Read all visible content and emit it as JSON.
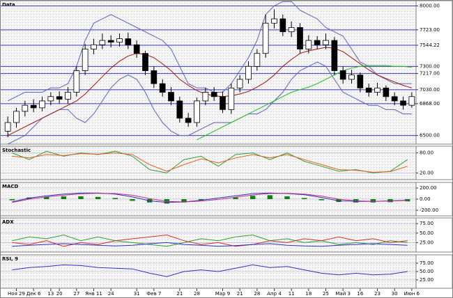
{
  "chart_data": [
    {
      "type": "candlestick",
      "title": "Data",
      "categories": [
        null,
        "Ноя 29",
        null,
        "Дек 6",
        null,
        "13",
        "20",
        null,
        "27",
        null,
        "Янв 11",
        null,
        "24",
        null,
        null,
        "31",
        null,
        "Фев 7",
        null,
        null,
        "21",
        null,
        "28",
        null,
        null,
        "Мар 9",
        null,
        "21",
        null,
        "28",
        null,
        "Апр 4",
        null,
        "11",
        null,
        "18",
        null,
        "25",
        null,
        "Май 3",
        null,
        "16",
        null,
        "23",
        null,
        "30",
        null,
        "Июн 6"
      ],
      "open": [
        6550,
        6650,
        6780,
        6850,
        6820,
        6900,
        6950,
        6920,
        7000,
        7250,
        7500,
        7550,
        7600,
        7580,
        7620,
        7550,
        7450,
        7250,
        7100,
        7000,
        6900,
        6700,
        6650,
        6900,
        7000,
        6950,
        6800,
        7050,
        7150,
        7300,
        7450,
        7800,
        7850,
        7700,
        7750,
        7500,
        7600,
        7550,
        7600,
        7250,
        7150,
        7200,
        7050,
        7000,
        7050,
        6950,
        6900,
        6850
      ],
      "high": [
        6720,
        6820,
        6900,
        6920,
        6950,
        7000,
        7010,
        7060,
        7300,
        7560,
        7620,
        7680,
        7660,
        7680,
        7690,
        7600,
        7480,
        7300,
        7150,
        7060,
        6950,
        6760,
        6940,
        7050,
        7060,
        7010,
        7100,
        7200,
        7360,
        7500,
        7900,
        7960,
        7900,
        7820,
        7800,
        7660,
        7650,
        7680,
        7640,
        7300,
        7260,
        7230,
        7100,
        7110,
        7080,
        7000,
        6950,
        7000
      ],
      "low": [
        6480,
        6590,
        6720,
        6770,
        6780,
        6850,
        6870,
        6870,
        6950,
        7200,
        7440,
        7500,
        7520,
        7530,
        7500,
        7400,
        7200,
        7050,
        6950,
        6850,
        6650,
        6600,
        6600,
        6850,
        6900,
        6760,
        6750,
        7000,
        7100,
        7250,
        7400,
        7740,
        7650,
        7640,
        7450,
        7450,
        7500,
        7500,
        7200,
        7100,
        7100,
        7000,
        6950,
        6960,
        6900,
        6850,
        6800,
        6820
      ],
      "close": [
        6650,
        6780,
        6850,
        6820,
        6900,
        6950,
        6920,
        7000,
        7250,
        7500,
        7550,
        7600,
        7580,
        7620,
        7550,
        7450,
        7250,
        7100,
        7000,
        6900,
        6700,
        6650,
        6900,
        7000,
        6950,
        6800,
        7050,
        7150,
        7300,
        7450,
        7800,
        7850,
        7700,
        7750,
        7500,
        7600,
        7550,
        7600,
        7250,
        7150,
        7200,
        7050,
        7000,
        7050,
        6950,
        6900,
        6850,
        6950
      ],
      "series": [
        {
          "name": "BB upper",
          "color": "#6060c0",
          "values": [
            6900,
            6950,
            7000,
            7000,
            7000,
            7050,
            7050,
            7100,
            7300,
            7600,
            7800,
            7850,
            7900,
            7850,
            7800,
            7750,
            7700,
            7650,
            7600,
            7500,
            7300,
            7100,
            7050,
            7050,
            7000,
            7000,
            7100,
            7250,
            7400,
            7600,
            7900,
            8000,
            8050,
            8050,
            7950,
            7900,
            7850,
            7750,
            7700,
            7650,
            7500,
            7350,
            7300,
            7200,
            7150,
            7100,
            7100,
            7100
          ]
        },
        {
          "name": "BB lower",
          "color": "#6060c0",
          "values": [
            6400,
            6450,
            6500,
            6600,
            6700,
            6750,
            6800,
            6800,
            6700,
            6650,
            6750,
            6900,
            7050,
            7150,
            7200,
            7150,
            7000,
            6800,
            6650,
            6550,
            6500,
            6500,
            6550,
            6600,
            6650,
            6650,
            6650,
            6700,
            6750,
            6750,
            6800,
            6900,
            7000,
            7150,
            7250,
            7300,
            7350,
            7300,
            7150,
            7000,
            6950,
            6900,
            6850,
            6850,
            6800,
            6800,
            6750,
            6750
          ]
        },
        {
          "name": "MA",
          "color": "#a01010",
          "values": [
            6500,
            6550,
            6600,
            6650,
            6700,
            6750,
            6800,
            6850,
            6900,
            6980,
            7080,
            7180,
            7280,
            7360,
            7420,
            7450,
            7440,
            7400,
            7330,
            7250,
            7150,
            7080,
            7020,
            6980,
            6960,
            6950,
            6960,
            6980,
            7010,
            7060,
            7120,
            7200,
            7300,
            7380,
            7450,
            7480,
            7500,
            7520,
            7510,
            7470,
            7400,
            7330,
            7260,
            7200,
            7160,
            7120,
            7080,
            7050
          ]
        },
        {
          "name": "Trend",
          "color": "#20c020",
          "values": [
            null,
            null,
            null,
            null,
            null,
            null,
            null,
            null,
            null,
            null,
            null,
            null,
            null,
            null,
            null,
            null,
            null,
            null,
            null,
            null,
            null,
            null,
            6450,
            6500,
            6550,
            6600,
            6650,
            6700,
            6750,
            6800,
            6850,
            6900,
            6950,
            7000,
            7030,
            7060,
            7100,
            7150,
            7200,
            7250,
            7280,
            7300,
            7310,
            7310,
            7310,
            7300,
            7300,
            7290
          ]
        }
      ],
      "ylim": [
        6400,
        8060
      ],
      "yticks": [
        {
          "value": 8000,
          "label": "8000.00"
        },
        {
          "value": 7723,
          "label": "7723.00"
        },
        {
          "value": 7544.22,
          "label": "7544.22"
        },
        {
          "value": 7300,
          "label": "7300.00"
        },
        {
          "value": 7217,
          "label": "7217.00"
        },
        {
          "value": 7030,
          "label": "7030.00"
        },
        {
          "value": 6868,
          "label": "6868.00"
        },
        {
          "value": 6500,
          "label": "6500.00"
        }
      ]
    },
    {
      "type": "line",
      "title": "Stochastic",
      "ylim": [
        0,
        100
      ],
      "yticks": [
        {
          "value": 80,
          "label": "80.00"
        },
        {
          "value": 20,
          "label": "20.00"
        }
      ],
      "series": [
        {
          "name": "%K",
          "color": "#30a030",
          "values": [
            80,
            60,
            85,
            70,
            80,
            75,
            85,
            70,
            30,
            20,
            60,
            70,
            40,
            75,
            80,
            60,
            80,
            55,
            40,
            25,
            30,
            20,
            25,
            60
          ]
        },
        {
          "name": "%D",
          "color": "#e06020",
          "values": [
            70,
            65,
            75,
            72,
            78,
            76,
            80,
            75,
            45,
            25,
            45,
            62,
            50,
            65,
            75,
            65,
            75,
            60,
            45,
            30,
            28,
            22,
            24,
            40
          ]
        }
      ]
    },
    {
      "type": "macd",
      "title": "MACD",
      "ylim": [
        -300,
        300
      ],
      "yticks": [
        {
          "value": 200,
          "label": "200.00"
        },
        {
          "value": 0,
          "label": "0.00"
        },
        {
          "value": -200,
          "label": "-200.00"
        }
      ],
      "histogram": {
        "color": "#108010",
        "values": [
          -20,
          30,
          40,
          50,
          50,
          40,
          20,
          -30,
          -60,
          -80,
          -60,
          -20,
          0,
          30,
          60,
          70,
          50,
          20,
          -20,
          -50,
          -60,
          -60,
          -55,
          -40
        ]
      },
      "series": [
        {
          "name": "MACD",
          "color": "#3030c0",
          "values": [
            -50,
            20,
            60,
            90,
            110,
            110,
            90,
            40,
            -30,
            -60,
            -50,
            -20,
            20,
            60,
            100,
            110,
            100,
            80,
            30,
            -30,
            -40,
            -40,
            -30,
            -20
          ]
        },
        {
          "name": "Signal",
          "color": "#c03080",
          "values": [
            -60,
            0,
            40,
            70,
            95,
            105,
            100,
            70,
            10,
            -40,
            -50,
            -35,
            -5,
            35,
            75,
            100,
            105,
            90,
            55,
            0,
            -30,
            -40,
            -35,
            -25
          ]
        }
      ]
    },
    {
      "type": "line",
      "title": "ADX",
      "ylim": [
        0,
        90
      ],
      "yticks": [
        {
          "value": 75,
          "label": "75.00"
        },
        {
          "value": 50,
          "label": "50.00"
        },
        {
          "value": 25,
          "label": "25.00"
        }
      ],
      "series": [
        {
          "name": "+DI",
          "color": "#30a030",
          "values": [
            30,
            40,
            35,
            45,
            30,
            40,
            30,
            25,
            20,
            15,
            25,
            35,
            30,
            40,
            45,
            30,
            35,
            25,
            30,
            20,
            25,
            20,
            30,
            25
          ]
        },
        {
          "name": "-DI",
          "color": "#d03030",
          "values": [
            25,
            20,
            30,
            15,
            25,
            20,
            30,
            35,
            40,
            45,
            30,
            20,
            25,
            15,
            20,
            30,
            25,
            35,
            30,
            40,
            30,
            35,
            25,
            30
          ]
        },
        {
          "name": "ADX",
          "color": "#3030c0",
          "values": [
            15,
            18,
            20,
            22,
            20,
            18,
            16,
            18,
            22,
            25,
            20,
            18,
            15,
            17,
            20,
            22,
            18,
            16,
            15,
            18,
            20,
            22,
            20,
            18
          ]
        }
      ]
    },
    {
      "type": "line",
      "title": "RSI, 9",
      "ylim": [
        0,
        100
      ],
      "yticks": [
        {
          "value": 75,
          "label": "75.00"
        },
        {
          "value": 50,
          "label": "50.00"
        },
        {
          "value": 25,
          "label": "25.00"
        }
      ],
      "series": [
        {
          "name": "RSI",
          "color": "#3030c0",
          "values": [
            55,
            62,
            65,
            70,
            68,
            62,
            60,
            58,
            45,
            35,
            50,
            55,
            50,
            60,
            70,
            62,
            65,
            55,
            45,
            40,
            45,
            40,
            42,
            50
          ]
        }
      ]
    }
  ]
}
